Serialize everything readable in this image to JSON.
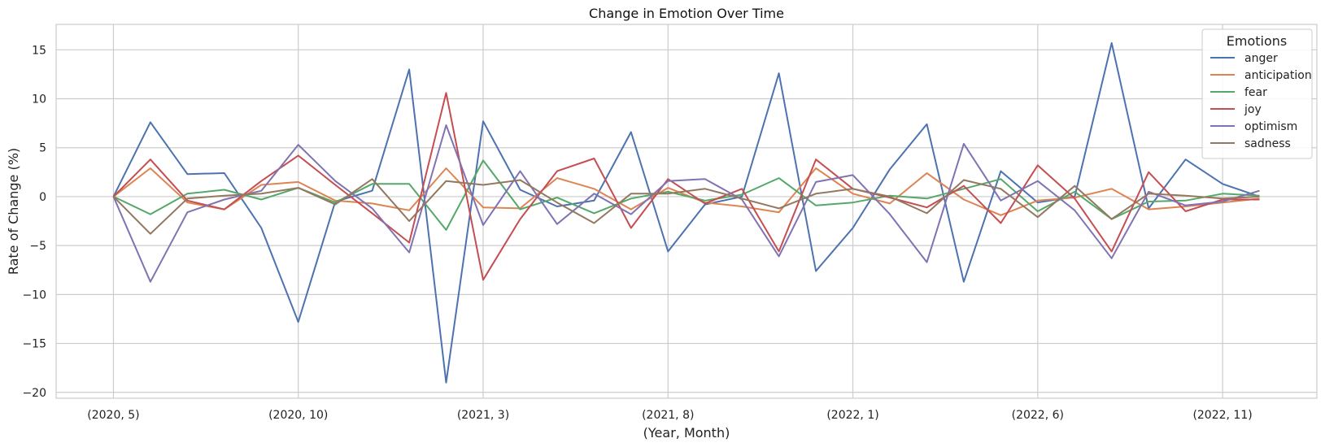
{
  "chart_data": {
    "type": "line",
    "title": "Change in Emotion  Over Time",
    "xlabel": "(Year, Month)",
    "ylabel": "Rate of Change (%)",
    "x": [
      "(2020, 5)",
      "(2020, 6)",
      "(2020, 7)",
      "(2020, 8)",
      "(2020, 9)",
      "(2020, 10)",
      "(2020, 11)",
      "(2020, 12)",
      "(2021, 1)",
      "(2021, 2)",
      "(2021, 3)",
      "(2021, 4)",
      "(2021, 5)",
      "(2021, 6)",
      "(2021, 7)",
      "(2021, 8)",
      "(2021, 9)",
      "(2021, 10)",
      "(2021, 11)",
      "(2021, 12)",
      "(2022, 1)",
      "(2022, 2)",
      "(2022, 3)",
      "(2022, 4)",
      "(2022, 5)",
      "(2022, 6)",
      "(2022, 7)",
      "(2022, 8)",
      "(2022, 9)",
      "(2022, 10)",
      "(2022, 11)",
      "(2022, 12)"
    ],
    "xticks": [
      "(2020, 5)",
      "(2020, 10)",
      "(2021, 3)",
      "(2021, 8)",
      "(2022, 1)",
      "(2022, 6)",
      "(2022, 11)"
    ],
    "xtick_indices": [
      0,
      5,
      10,
      15,
      20,
      25,
      30
    ],
    "xlim": [
      -1.55,
      32.55
    ],
    "ylim": [
      -20.6,
      17.6
    ],
    "yticks": [
      -20,
      -15,
      -10,
      -5,
      0,
      5,
      10,
      15
    ],
    "grid": true,
    "legend": {
      "title": "Emotions",
      "placement": "top-right"
    },
    "series": [
      {
        "name": "anger",
        "color": "#4c72b0",
        "values": [
          0,
          7.6,
          2.3,
          2.4,
          -3.2,
          -12.8,
          -0.5,
          0.6,
          13.0,
          -19.0,
          7.7,
          0.7,
          -1.0,
          -0.4,
          6.6,
          -5.6,
          -0.8,
          0.0,
          12.6,
          -7.6,
          -3.2,
          2.8,
          7.4,
          -8.7,
          2.6,
          -0.6,
          0.0,
          15.7,
          -1.2,
          3.8,
          1.3,
          0.0
        ]
      },
      {
        "name": "anticipation",
        "color": "#dd8452",
        "values": [
          0,
          2.9,
          -0.6,
          -1.3,
          1.2,
          1.5,
          -0.4,
          -0.7,
          -1.4,
          2.9,
          -1.1,
          -1.2,
          1.9,
          0.8,
          -1.3,
          0.9,
          -0.6,
          -1.0,
          -1.6,
          2.9,
          0.3,
          -0.7,
          2.4,
          -0.3,
          -1.9,
          -0.4,
          -0.1,
          0.8,
          -1.3,
          -1.0,
          -0.6,
          -0.2
        ]
      },
      {
        "name": "fear",
        "color": "#55a868",
        "values": [
          0,
          -1.8,
          0.3,
          0.7,
          -0.3,
          0.9,
          -0.6,
          1.3,
          1.3,
          -3.4,
          3.7,
          -1.3,
          -0.1,
          -1.7,
          -0.2,
          0.5,
          -0.4,
          0.2,
          1.9,
          -0.9,
          -0.6,
          0.1,
          -0.2,
          0.8,
          1.8,
          -1.5,
          0.5,
          -2.3,
          -0.5,
          -0.4,
          0.3,
          0.1
        ]
      },
      {
        "name": "joy",
        "color": "#c44e52",
        "values": [
          0,
          3.8,
          -0.4,
          -1.3,
          1.6,
          4.2,
          1.2,
          -1.7,
          -4.7,
          10.6,
          -8.5,
          -2.3,
          2.6,
          3.9,
          -3.2,
          1.8,
          -0.7,
          0.8,
          -5.6,
          3.8,
          0.8,
          -0.1,
          -1.1,
          1.1,
          -2.7,
          3.2,
          -0.2,
          -5.6,
          2.5,
          -1.5,
          -0.3,
          -0.3
        ]
      },
      {
        "name": "optimism",
        "color": "#8172b3",
        "values": [
          0,
          -8.7,
          -1.6,
          -0.3,
          0.6,
          5.3,
          1.6,
          -1.2,
          -5.7,
          7.3,
          -2.9,
          2.6,
          -2.8,
          0.3,
          -1.8,
          1.6,
          1.8,
          -0.3,
          -6.1,
          1.5,
          2.2,
          -1.8,
          -6.7,
          5.4,
          -0.4,
          1.6,
          -1.4,
          -6.3,
          0.5,
          -0.9,
          -0.5,
          0.6
        ]
      },
      {
        "name": "sadness",
        "color": "#937860",
        "values": [
          0,
          -3.8,
          -0.2,
          0.1,
          0.3,
          0.9,
          -0.8,
          1.8,
          -2.5,
          1.6,
          1.2,
          1.7,
          -0.6,
          -2.7,
          0.3,
          0.3,
          0.8,
          -0.2,
          -1.2,
          0.3,
          0.8,
          0.0,
          -1.7,
          1.7,
          0.8,
          -2.1,
          1.1,
          -2.3,
          0.3,
          0.1,
          -0.2,
          0.0
        ]
      }
    ]
  }
}
